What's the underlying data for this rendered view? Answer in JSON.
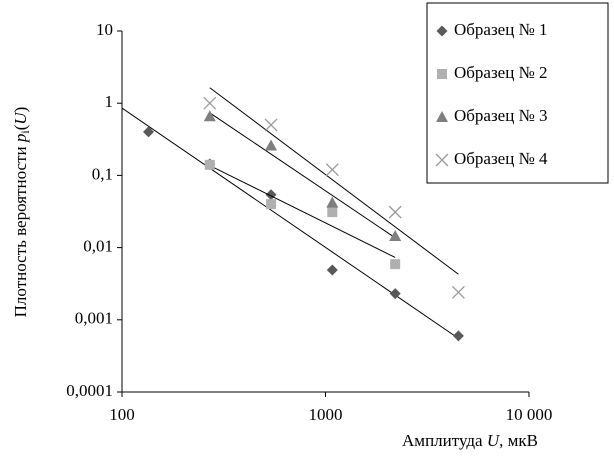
{
  "chart_data": {
    "type": "scatter",
    "xlabel": [
      "Амплитуда ",
      "U",
      ", мкВ"
    ],
    "ylabel": [
      "Плотность вероятности ",
      "p",
      "i",
      "(",
      "U",
      ")"
    ],
    "xlog": true,
    "ylog": true,
    "trendlines": true,
    "xlim": [
      100,
      10000
    ],
    "xticks": [
      100,
      1000,
      {
        "value": 10000,
        "label": "10 000"
      }
    ],
    "ylim": [
      0.0001,
      10
    ],
    "yticks": [
      {
        "value": 0.0001,
        "label": "0,0001"
      },
      {
        "value": 0.001,
        "label": "0,001"
      },
      {
        "value": 0.01,
        "label": "0,01"
      },
      {
        "value": 0.1,
        "label": "0,1"
      },
      1,
      10
    ],
    "legend": "top-right",
    "series": [
      {
        "name": "Образец № 1",
        "marker": "diamond",
        "color": "#595959",
        "x": [
          135,
          270,
          540,
          1080,
          2200,
          4500
        ],
        "values": [
          0.4,
          0.144,
          0.054,
          0.0049,
          0.0023,
          0.0006
        ]
      },
      {
        "name": "Образец № 2",
        "marker": "square",
        "color": "#b0b0b0",
        "x": [
          270,
          540,
          1080,
          2200
        ],
        "values": [
          0.14,
          0.04,
          0.031,
          0.0059
        ]
      },
      {
        "name": "Образец № 3",
        "marker": "triangle",
        "color": "#7f7f7f",
        "x": [
          270,
          540,
          1080,
          2200
        ],
        "values": [
          0.66,
          0.26,
          0.042,
          0.0145
        ]
      },
      {
        "name": "Образец № 4",
        "marker": "cross",
        "color": "#9a9a9a",
        "x": [
          270,
          540,
          1080,
          2200,
          4500
        ],
        "values": [
          1.0,
          0.5,
          0.12,
          0.031,
          0.0024
        ]
      }
    ]
  }
}
